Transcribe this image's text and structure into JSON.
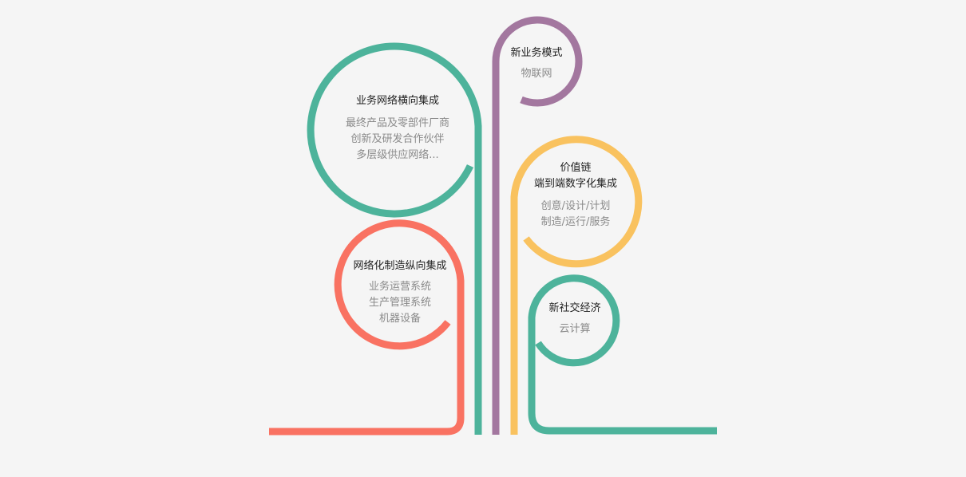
{
  "colors": {
    "teal": "#4db39b",
    "purple": "#a3779f",
    "yellow": "#f9c25f",
    "coral": "#f97262",
    "background": "#f5f5f5"
  },
  "nodes": {
    "horizontal_integration": {
      "title": "业务网络横向集成",
      "lines": [
        "最终产品及零部件厂商",
        "创新及研发合作伙伴",
        "多层级供应网络..."
      ]
    },
    "new_business_model": {
      "title": "新业务模式",
      "lines": [
        "物联网"
      ]
    },
    "value_chain": {
      "title_line1": "价值链",
      "title_line2": "端到端数字化集成",
      "lines": [
        "创意/设计/计划",
        "制造/运行/服务"
      ]
    },
    "vertical_integration": {
      "title": "网络化制造纵向集成",
      "lines": [
        "业务运营系统",
        "生产管理系统",
        "机器设备"
      ]
    },
    "new_social": {
      "title": "新社交经济",
      "lines": [
        "云计算"
      ]
    }
  }
}
